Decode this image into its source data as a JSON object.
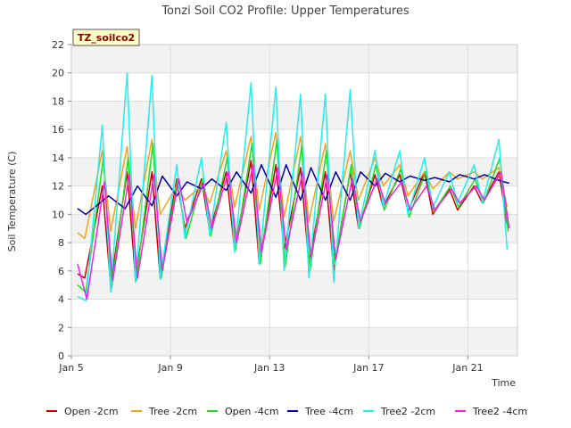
{
  "chart_data": {
    "type": "line",
    "title": "Tonzi Soil CO2 Profile: Upper Temperatures",
    "xlabel": "Time",
    "ylabel": "Soil Temperature (C)",
    "badge": "TZ_soilco2",
    "ylim": [
      0,
      22
    ],
    "yticks": [
      0,
      2,
      4,
      6,
      8,
      10,
      12,
      14,
      16,
      18,
      20,
      22
    ],
    "xlim": [
      "2000-01-05",
      "2000-01-23"
    ],
    "xticks": [
      {
        "label": "Jan 5",
        "date": "2000-01-05"
      },
      {
        "label": "Jan 9",
        "date": "2000-01-09"
      },
      {
        "label": "Jan 13",
        "date": "2000-01-13"
      },
      {
        "label": "Jan 17",
        "date": "2000-01-17"
      },
      {
        "label": "Jan 21",
        "date": "2000-01-21"
      }
    ],
    "grid": true,
    "legend_position": "bottom",
    "series": [
      {
        "name": "Open -2cm",
        "color": "#cc0000",
        "x": [
          "2000-01-05T06:00",
          "2000-01-05T13:00",
          "2000-01-06T06:00",
          "2000-01-06T14:00",
          "2000-01-07T06:00",
          "2000-01-07T14:00",
          "2000-01-08T06:00",
          "2000-01-08T14:00",
          "2000-01-09T06:00",
          "2000-01-09T14:00",
          "2000-01-10T06:00",
          "2000-01-10T14:00",
          "2000-01-11T06:00",
          "2000-01-11T14:00",
          "2000-01-12T06:00",
          "2000-01-12T14:00",
          "2000-01-13T06:00",
          "2000-01-13T14:00",
          "2000-01-14T06:00",
          "2000-01-14T14:00",
          "2000-01-15T06:00",
          "2000-01-15T14:00",
          "2000-01-16T06:00",
          "2000-01-16T14:00",
          "2000-01-17T06:00",
          "2000-01-17T14:00",
          "2000-01-18T06:00",
          "2000-01-18T14:00",
          "2000-01-19T06:00",
          "2000-01-19T14:00",
          "2000-01-20T06:00",
          "2000-01-20T14:00",
          "2000-01-21T06:00",
          "2000-01-21T14:00",
          "2000-01-22T06:00",
          "2000-01-22T14:00"
        ],
        "y": [
          5.8,
          5.5,
          12.0,
          5.0,
          13.0,
          5.5,
          13.0,
          5.5,
          12.5,
          9.0,
          12.5,
          8.8,
          13.0,
          7.5,
          13.8,
          6.5,
          13.5,
          7.5,
          13.3,
          6.5,
          13.0,
          6.0,
          13.0,
          9.0,
          12.8,
          10.5,
          12.8,
          10.2,
          13.0,
          10.0,
          11.8,
          10.3,
          12.0,
          10.8,
          13.0,
          9.3
        ]
      },
      {
        "name": "Tree -2cm",
        "color": "#f5a21b",
        "x": [
          "2000-01-05T06:00",
          "2000-01-05T13:00",
          "2000-01-06T06:00",
          "2000-01-06T14:00",
          "2000-01-07T06:00",
          "2000-01-07T14:00",
          "2000-01-08T06:00",
          "2000-01-08T14:00",
          "2000-01-09T06:00",
          "2000-01-09T14:00",
          "2000-01-10T06:00",
          "2000-01-10T14:00",
          "2000-01-11T06:00",
          "2000-01-11T14:00",
          "2000-01-12T06:00",
          "2000-01-12T14:00",
          "2000-01-13T06:00",
          "2000-01-13T14:00",
          "2000-01-14T06:00",
          "2000-01-14T14:00",
          "2000-01-15T06:00",
          "2000-01-15T14:00",
          "2000-01-16T06:00",
          "2000-01-16T14:00",
          "2000-01-17T06:00",
          "2000-01-17T14:00",
          "2000-01-18T06:00",
          "2000-01-18T14:00",
          "2000-01-19T06:00",
          "2000-01-19T14:00",
          "2000-01-20T06:00",
          "2000-01-20T14:00",
          "2000-01-21T06:00",
          "2000-01-21T14:00",
          "2000-01-22T06:00",
          "2000-01-22T14:00"
        ],
        "y": [
          8.7,
          8.3,
          14.5,
          8.8,
          14.8,
          9.0,
          15.3,
          10.0,
          12.0,
          11.0,
          12.0,
          10.8,
          14.5,
          10.5,
          15.5,
          10.3,
          15.8,
          9.8,
          15.5,
          9.5,
          15.0,
          9.5,
          14.5,
          11.0,
          14.0,
          12.0,
          13.5,
          11.3,
          13.0,
          11.8,
          13.0,
          12.5,
          13.0,
          12.5,
          13.3,
          10.5
        ]
      },
      {
        "name": "Open -4cm",
        "color": "#22dd22",
        "x": [
          "2000-01-05T06:00",
          "2000-01-05T14:00",
          "2000-01-06T07:00",
          "2000-01-06T15:00",
          "2000-01-07T07:00",
          "2000-01-07T15:00",
          "2000-01-08T07:00",
          "2000-01-08T15:00",
          "2000-01-09T07:00",
          "2000-01-09T15:00",
          "2000-01-10T07:00",
          "2000-01-10T15:00",
          "2000-01-11T07:00",
          "2000-01-11T15:00",
          "2000-01-12T07:00",
          "2000-01-12T15:00",
          "2000-01-13T07:00",
          "2000-01-13T15:00",
          "2000-01-14T07:00",
          "2000-01-14T15:00",
          "2000-01-15T07:00",
          "2000-01-15T15:00",
          "2000-01-16T07:00",
          "2000-01-16T15:00",
          "2000-01-17T07:00",
          "2000-01-17T15:00",
          "2000-01-18T07:00",
          "2000-01-18T15:00",
          "2000-01-19T07:00",
          "2000-01-19T15:00",
          "2000-01-20T07:00",
          "2000-01-20T15:00",
          "2000-01-21T07:00",
          "2000-01-21T15:00",
          "2000-01-22T07:00",
          "2000-01-22T15:00"
        ],
        "y": [
          5.0,
          4.5,
          14.0,
          4.8,
          14.0,
          5.3,
          15.0,
          5.5,
          12.5,
          8.3,
          12.5,
          8.5,
          14.0,
          7.5,
          15.0,
          6.5,
          15.2,
          6.3,
          14.8,
          6.0,
          14.5,
          6.5,
          13.5,
          9.0,
          13.5,
          10.3,
          13.2,
          9.8,
          13.0,
          10.2,
          12.0,
          10.5,
          12.5,
          10.8,
          14.0,
          8.8
        ]
      },
      {
        "name": "Tree -4cm",
        "color": "#0000aa",
        "x": [
          "2000-01-05T06:00",
          "2000-01-05T14:00",
          "2000-01-06T12:00",
          "2000-01-07T04:00",
          "2000-01-07T16:00",
          "2000-01-08T06:00",
          "2000-01-08T16:00",
          "2000-01-09T06:00",
          "2000-01-09T16:00",
          "2000-01-10T06:00",
          "2000-01-10T16:00",
          "2000-01-11T06:00",
          "2000-01-11T16:00",
          "2000-01-12T06:00",
          "2000-01-12T16:00",
          "2000-01-13T06:00",
          "2000-01-13T16:00",
          "2000-01-14T06:00",
          "2000-01-14T16:00",
          "2000-01-15T06:00",
          "2000-01-15T16:00",
          "2000-01-16T06:00",
          "2000-01-16T16:00",
          "2000-01-17T06:00",
          "2000-01-17T16:00",
          "2000-01-18T06:00",
          "2000-01-18T16:00",
          "2000-01-19T06:00",
          "2000-01-19T16:00",
          "2000-01-20T06:00",
          "2000-01-20T16:00",
          "2000-01-21T06:00",
          "2000-01-21T16:00",
          "2000-01-22T06:00",
          "2000-01-22T16:00"
        ],
        "y": [
          10.4,
          10.0,
          11.3,
          10.4,
          12.0,
          10.6,
          12.7,
          11.3,
          12.3,
          11.8,
          12.5,
          11.7,
          13.0,
          11.5,
          13.5,
          11.2,
          13.5,
          11.0,
          13.3,
          11.0,
          13.0,
          11.0,
          13.0,
          12.0,
          12.9,
          12.3,
          12.7,
          12.4,
          12.6,
          12.3,
          12.8,
          12.5,
          12.8,
          12.4,
          12.2
        ]
      },
      {
        "name": "Tree2 -2cm",
        "color": "#22eeee",
        "x": [
          "2000-01-05T06:00",
          "2000-01-05T14:00",
          "2000-01-06T06:00",
          "2000-01-06T14:00",
          "2000-01-07T06:00",
          "2000-01-07T14:00",
          "2000-01-08T06:00",
          "2000-01-08T14:00",
          "2000-01-09T06:00",
          "2000-01-09T14:00",
          "2000-01-10T06:00",
          "2000-01-10T14:00",
          "2000-01-11T06:00",
          "2000-01-11T14:00",
          "2000-01-12T06:00",
          "2000-01-12T14:00",
          "2000-01-13T06:00",
          "2000-01-13T14:00",
          "2000-01-14T06:00",
          "2000-01-14T14:00",
          "2000-01-15T06:00",
          "2000-01-15T14:00",
          "2000-01-16T06:00",
          "2000-01-16T14:00",
          "2000-01-17T06:00",
          "2000-01-17T14:00",
          "2000-01-18T06:00",
          "2000-01-18T14:00",
          "2000-01-19T06:00",
          "2000-01-19T14:00",
          "2000-01-20T06:00",
          "2000-01-20T14:00",
          "2000-01-21T06:00",
          "2000-01-21T14:00",
          "2000-01-22T06:00",
          "2000-01-22T14:00"
        ],
        "y": [
          4.2,
          3.9,
          16.3,
          4.5,
          20.0,
          5.2,
          19.8,
          5.4,
          13.5,
          8.3,
          14.0,
          8.5,
          16.5,
          7.3,
          19.3,
          6.5,
          19.0,
          6.0,
          18.5,
          5.5,
          18.5,
          5.2,
          18.8,
          9.0,
          14.5,
          10.5,
          14.5,
          10.0,
          14.0,
          10.5,
          13.0,
          10.8,
          13.5,
          10.8,
          15.3,
          7.5
        ]
      },
      {
        "name": "Tree2 -4cm",
        "color": "#ee22ee",
        "x": [
          "2000-01-05T06:00",
          "2000-01-05T15:00",
          "2000-01-06T08:00",
          "2000-01-06T16:00",
          "2000-01-07T08:00",
          "2000-01-07T16:00",
          "2000-01-08T08:00",
          "2000-01-08T16:00",
          "2000-01-09T08:00",
          "2000-01-09T16:00",
          "2000-01-10T08:00",
          "2000-01-10T16:00",
          "2000-01-11T08:00",
          "2000-01-11T16:00",
          "2000-01-12T08:00",
          "2000-01-12T16:00",
          "2000-01-13T08:00",
          "2000-01-13T16:00",
          "2000-01-14T08:00",
          "2000-01-14T16:00",
          "2000-01-15T08:00",
          "2000-01-15T16:00",
          "2000-01-16T08:00",
          "2000-01-16T16:00",
          "2000-01-17T08:00",
          "2000-01-17T16:00",
          "2000-01-18T08:00",
          "2000-01-18T16:00",
          "2000-01-19T08:00",
          "2000-01-19T16:00",
          "2000-01-20T08:00",
          "2000-01-20T16:00",
          "2000-01-21T08:00",
          "2000-01-21T16:00",
          "2000-01-22T08:00",
          "2000-01-22T16:00"
        ],
        "y": [
          6.5,
          4.0,
          12.3,
          5.3,
          12.8,
          5.5,
          12.8,
          6.0,
          12.5,
          9.4,
          12.2,
          9.0,
          13.0,
          8.0,
          13.5,
          7.3,
          13.3,
          7.5,
          13.0,
          7.0,
          12.8,
          6.8,
          12.5,
          9.5,
          12.5,
          10.8,
          12.3,
          10.3,
          12.0,
          10.3,
          11.8,
          10.8,
          12.0,
          11.0,
          13.0,
          9.0
        ]
      }
    ]
  }
}
